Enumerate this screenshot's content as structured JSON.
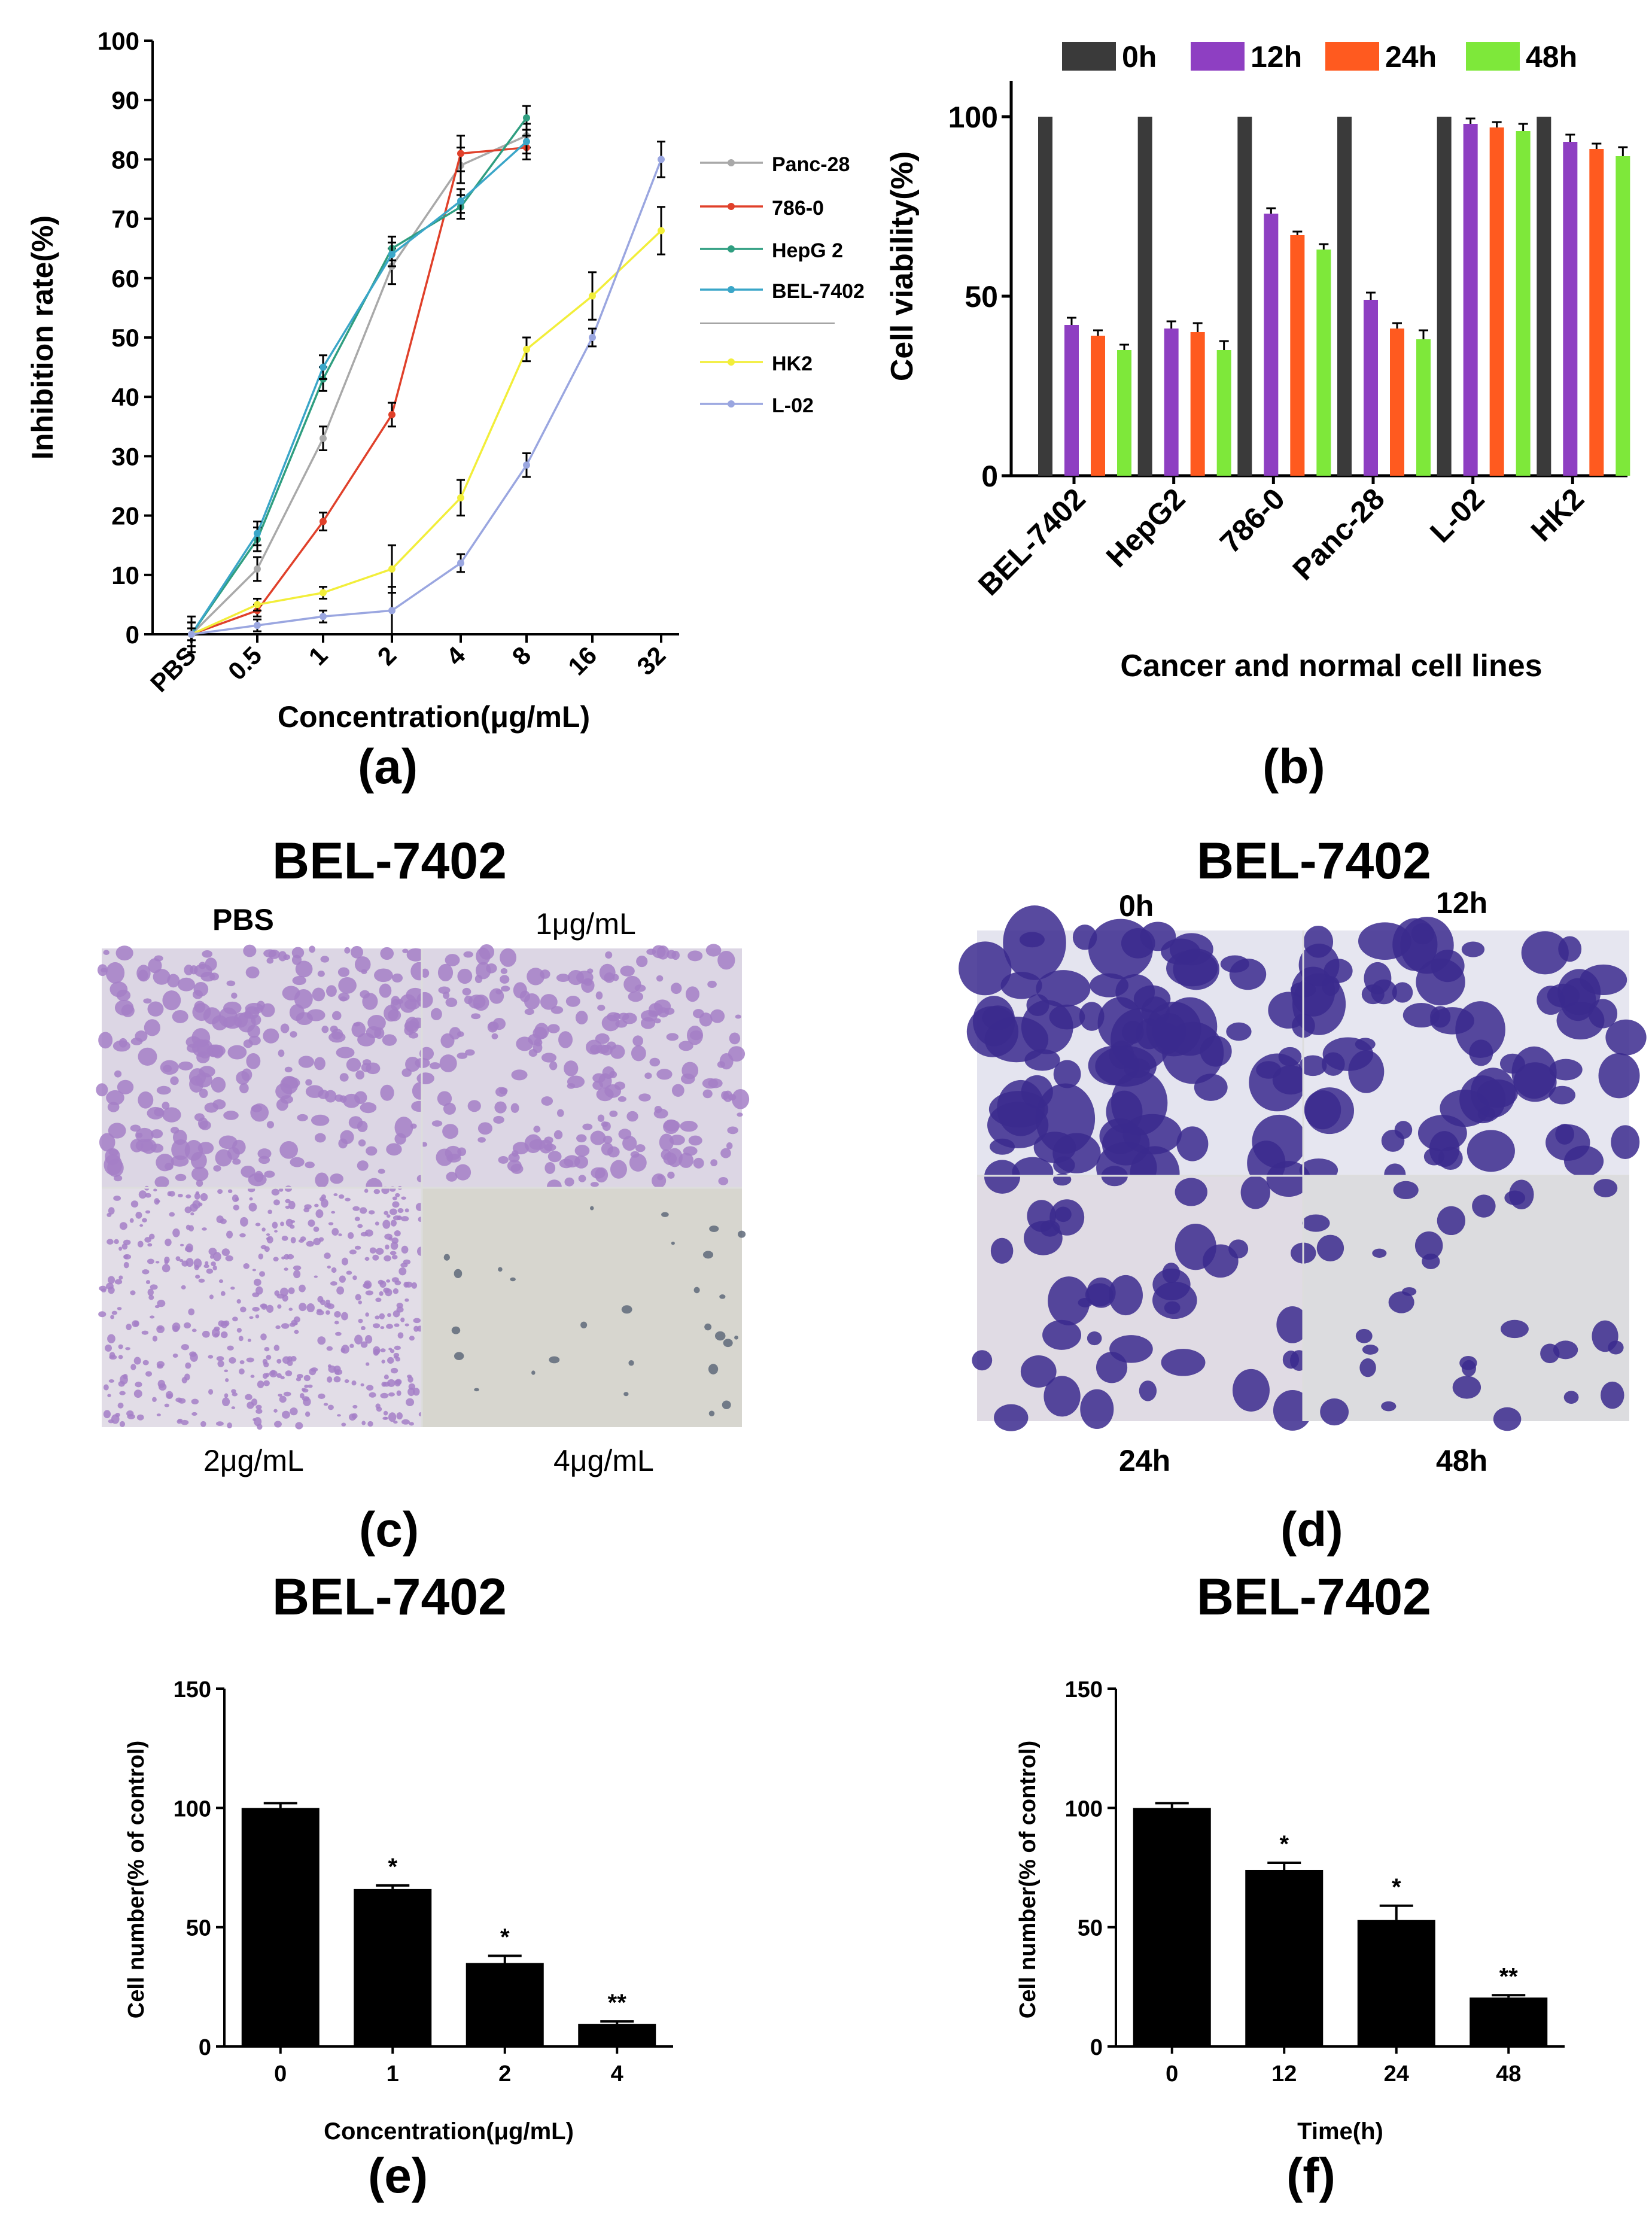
{
  "panels": {
    "a": {
      "label": "(a)"
    },
    "b": {
      "label": "(b)"
    },
    "c": {
      "label": "(c)",
      "title": "BEL-7402",
      "captions": [
        "PBS",
        "1μg/mL",
        "2μg/mL",
        "4μg/mL"
      ]
    },
    "d": {
      "label": "(d)",
      "title": "BEL-7402",
      "captions": [
        "0h",
        "12h",
        "24h",
        "48h"
      ]
    },
    "e": {
      "label": "(e)",
      "title": "BEL-7402"
    },
    "f": {
      "label": "(f)",
      "title": "BEL-7402"
    }
  },
  "colors": {
    "panc28": "#a9a9a9",
    "786_0": "#e0402a",
    "hepg2": "#2f9e80",
    "bel7402": "#3aa6c8",
    "hk2": "#f2ee3a",
    "l02": "#9aa6e0",
    "0h": "#3a3a3a",
    "12h": "#8e3fc2",
    "24h": "#ff5a1f",
    "48h": "#7ee83a",
    "stain_light": "#a57fc7",
    "stain_dark": "#3b2a8e"
  },
  "chart_data": [
    {
      "id": "a",
      "type": "line",
      "xlabel": "Concentration(μg/mL)",
      "ylabel": "Inhibition rate(%)",
      "categories": [
        "PBS",
        "0.5",
        "1",
        "2",
        "4",
        "8",
        "16",
        "32"
      ],
      "ylim": [
        0,
        100
      ],
      "yticks": [
        0,
        10,
        20,
        30,
        40,
        50,
        60,
        70,
        80,
        90,
        100
      ],
      "legend_position": "right",
      "series": [
        {
          "name": "Panc-28",
          "color_key": "panc28",
          "marker": "triangle",
          "x": [
            "PBS",
            "0.5",
            "1",
            "2",
            "4",
            "8"
          ],
          "values": [
            0,
            11,
            33,
            62,
            79,
            84
          ],
          "errors": [
            2,
            2,
            2,
            3,
            3,
            2
          ]
        },
        {
          "name": "786-0",
          "color_key": "786_0",
          "marker": "x",
          "x": [
            "PBS",
            "0.5",
            "1",
            "2",
            "4",
            "8"
          ],
          "values": [
            0,
            4,
            19,
            37,
            81,
            82
          ],
          "errors": [
            1,
            1,
            1.5,
            2,
            3,
            2
          ]
        },
        {
          "name": "HepG 2",
          "color_key": "hepg2",
          "marker": "square",
          "x": [
            "PBS",
            "0.5",
            "1",
            "2",
            "4",
            "8"
          ],
          "values": [
            0,
            16,
            43,
            65,
            72,
            87
          ],
          "errors": [
            2,
            2,
            2,
            2,
            2,
            2
          ]
        },
        {
          "name": "BEL-7402",
          "color_key": "bel7402",
          "marker": "plus",
          "x": [
            "PBS",
            "0.5",
            "1",
            "2",
            "4",
            "8"
          ],
          "values": [
            0,
            17,
            45,
            64,
            73,
            83
          ],
          "errors": [
            2,
            2,
            2,
            2,
            2,
            2
          ]
        },
        {
          "name": "HK2",
          "color_key": "hk2",
          "marker": "dot",
          "x": [
            "PBS",
            "0.5",
            "1",
            "2",
            "4",
            "8",
            "16",
            "32"
          ],
          "values": [
            0,
            5,
            7,
            11,
            23,
            48,
            57,
            68
          ],
          "errors": [
            1,
            1,
            1,
            4,
            3,
            2,
            4,
            4
          ]
        },
        {
          "name": "L-02",
          "color_key": "l02",
          "marker": "diamond",
          "x": [
            "PBS",
            "0.5",
            "1",
            "2",
            "4",
            "8",
            "16",
            "32"
          ],
          "values": [
            0,
            1.5,
            3,
            4,
            12,
            28.5,
            50,
            80
          ],
          "errors": [
            3,
            1,
            1,
            4,
            1.5,
            2,
            1.5,
            3
          ]
        }
      ]
    },
    {
      "id": "b",
      "type": "bar",
      "xlabel": "Cancer and normal cell lines",
      "ylabel": "Cell viability(%)",
      "categories": [
        "BEL-7402",
        "HepG2",
        "786-0",
        "Panc-28",
        "L-02",
        "HK2"
      ],
      "ylim": [
        0,
        110
      ],
      "yticks": [
        0,
        50,
        100
      ],
      "legend_position": "top",
      "series": [
        {
          "name": "0h",
          "color_key": "0h",
          "values": [
            100,
            100,
            100,
            100,
            100,
            100
          ],
          "errors": [
            0,
            0,
            0,
            0,
            0,
            0
          ]
        },
        {
          "name": "12h",
          "color_key": "12h",
          "values": [
            42,
            41,
            73,
            49,
            98,
            93
          ],
          "errors": [
            2,
            2,
            1.5,
            2,
            1.5,
            2
          ]
        },
        {
          "name": "24h",
          "color_key": "24h",
          "values": [
            39,
            40,
            67,
            41,
            97,
            91
          ],
          "errors": [
            1.5,
            2.5,
            1,
            1.5,
            1.5,
            1.5
          ]
        },
        {
          "name": "48h",
          "color_key": "48h",
          "values": [
            35,
            35,
            63,
            38,
            96,
            89
          ],
          "errors": [
            1.5,
            2.5,
            1.5,
            2.5,
            2,
            2.5
          ]
        }
      ]
    },
    {
      "id": "e",
      "type": "bar",
      "xlabel": "Concentration(μg/mL)",
      "ylabel": "Cell number(% of control)",
      "categories": [
        "0",
        "1",
        "2",
        "4"
      ],
      "ylim": [
        0,
        150
      ],
      "yticks": [
        0,
        50,
        100,
        150
      ],
      "series": [
        {
          "values": [
            100,
            66,
            35,
            9.5
          ],
          "errors": [
            2,
            1.5,
            3,
            1
          ],
          "annotations": [
            "",
            "*",
            "*",
            "**"
          ]
        }
      ]
    },
    {
      "id": "f",
      "type": "bar",
      "xlabel": "Time(h)",
      "ylabel": "Cell number(% of control)",
      "categories": [
        "0",
        "12",
        "24",
        "48"
      ],
      "ylim": [
        0,
        150
      ],
      "yticks": [
        0,
        50,
        100,
        150
      ],
      "series": [
        {
          "values": [
            100,
            74,
            53,
            20.5
          ],
          "errors": [
            2,
            3,
            6,
            1
          ],
          "annotations": [
            "",
            "*",
            "*",
            "**"
          ]
        }
      ]
    }
  ]
}
